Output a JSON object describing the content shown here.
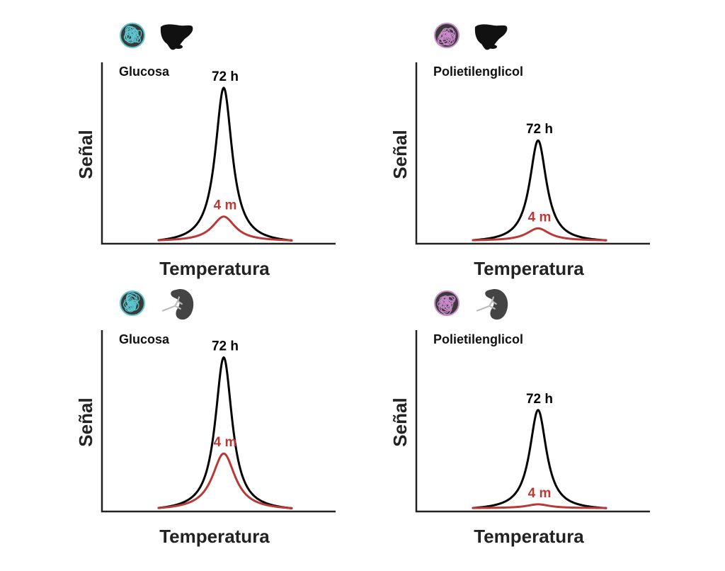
{
  "colors": {
    "axis": "#222222",
    "text": "#111111",
    "series_72h": "#000000",
    "series_4m": "#b83a37",
    "glucose_particle": "#5cc6cf",
    "peg_particle": "#c98ac9",
    "organ": "#111111",
    "kidney": "#444444"
  },
  "chart_data": [
    {
      "type": "line",
      "panel": "top-left",
      "title": "Glucosa",
      "icons": [
        "glucose-nanoparticle-icon",
        "liver-icon"
      ],
      "xlabel": "Temperatura",
      "ylabel": "Señal",
      "grid": false,
      "ylim": [
        0,
        1
      ],
      "series": [
        {
          "name": "72 h",
          "peak": 0.84,
          "width": 0.28
        },
        {
          "name": "4 m",
          "peak": 0.13,
          "width": 0.38
        }
      ]
    },
    {
      "type": "line",
      "panel": "top-right",
      "title": "Polietilenglicol",
      "icons": [
        "peg-nanoparticle-icon",
        "liver-icon"
      ],
      "xlabel": "Temperatura",
      "ylabel": "Señal",
      "grid": false,
      "ylim": [
        0,
        1
      ],
      "series": [
        {
          "name": "72 h",
          "peak": 0.55,
          "width": 0.28
        },
        {
          "name": "4 m",
          "peak": 0.065,
          "width": 0.38
        }
      ]
    },
    {
      "type": "line",
      "panel": "bottom-left",
      "title": "Glucosa",
      "icons": [
        "glucose-nanoparticle-icon",
        "kidney-icon"
      ],
      "xlabel": "Temperatura",
      "ylabel": "Señal",
      "grid": false,
      "ylim": [
        0,
        1
      ],
      "series": [
        {
          "name": "72 h",
          "peak": 0.83,
          "width": 0.28
        },
        {
          "name": "4 m",
          "peak": 0.3,
          "width": 0.38
        }
      ]
    },
    {
      "type": "line",
      "panel": "bottom-right",
      "title": "Polietilenglicol",
      "icons": [
        "peg-nanoparticle-icon",
        "kidney-icon"
      ],
      "xlabel": "Temperatura",
      "ylabel": "Señal",
      "grid": false,
      "ylim": [
        0,
        1
      ],
      "series": [
        {
          "name": "72 h",
          "peak": 0.54,
          "width": 0.28
        },
        {
          "name": "4 m",
          "peak": 0.02,
          "width": 0.38
        }
      ]
    }
  ]
}
